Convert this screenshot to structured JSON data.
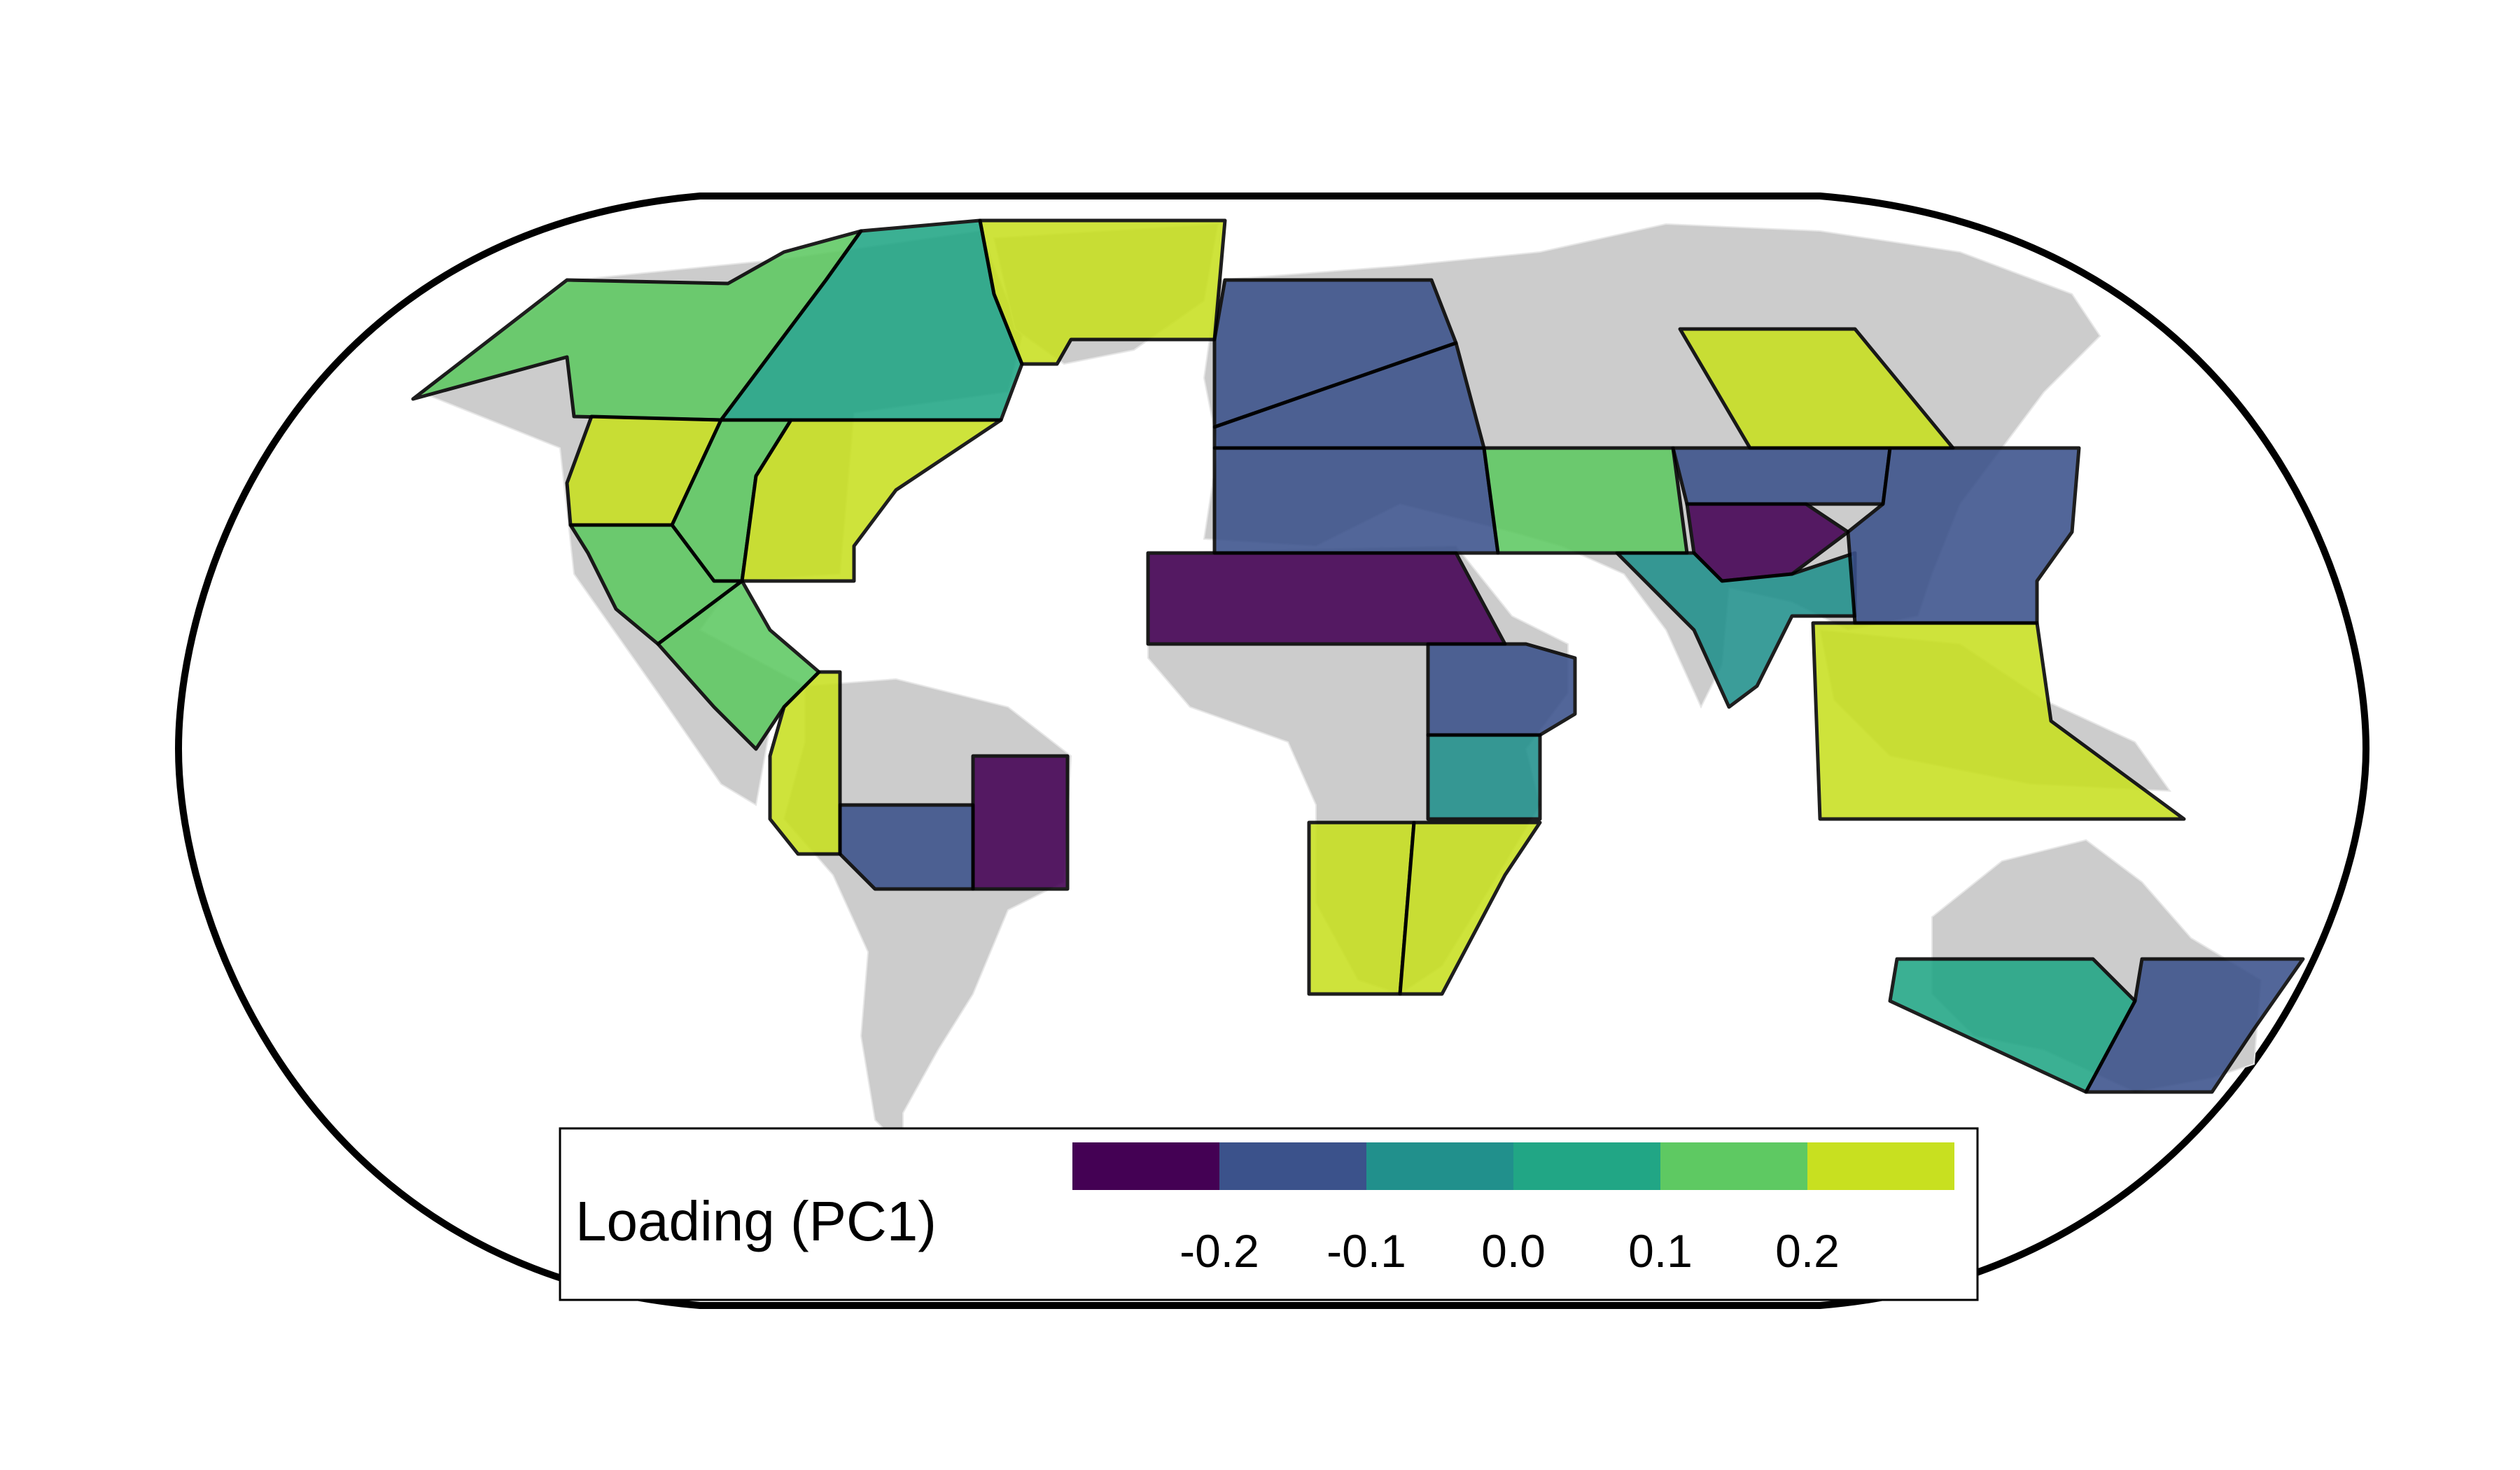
{
  "map": {
    "frame": "robinson-world-outline",
    "land_color": "#cccccc",
    "region_outline_color": "#000000",
    "regions": [
      {
        "id": "north-west-north-america",
        "value": 0.15
      },
      {
        "id": "north-east-north-america",
        "value": 0.05
      },
      {
        "id": "greenland-iceland",
        "value": 0.22
      },
      {
        "id": "western-north-america",
        "value": 0.22
      },
      {
        "id": "central-north-america",
        "value": 0.15
      },
      {
        "id": "eastern-north-america",
        "value": 0.22
      },
      {
        "id": "north-central-america",
        "value": 0.15
      },
      {
        "id": "south-central-america",
        "value": 0.15
      },
      {
        "id": "north-western-south-america",
        "value": 0.22
      },
      {
        "id": "south-american-monsoon",
        "value": -0.15
      },
      {
        "id": "north-eastern-south-america",
        "value": -0.25
      },
      {
        "id": "northern-europe",
        "value": -0.15
      },
      {
        "id": "west-central-europe",
        "value": -0.15
      },
      {
        "id": "mediterranean",
        "value": -0.15
      },
      {
        "id": "sahara",
        "value": -0.25
      },
      {
        "id": "north-eastern-africa",
        "value": -0.15
      },
      {
        "id": "south-eastern-africa",
        "value": -0.05
      },
      {
        "id": "western-southern-africa",
        "value": 0.22
      },
      {
        "id": "eastern-southern-africa",
        "value": 0.22
      },
      {
        "id": "west-central-asia",
        "value": 0.15
      },
      {
        "id": "east-central-asia",
        "value": -0.15
      },
      {
        "id": "tibetan-plateau",
        "value": -0.25
      },
      {
        "id": "south-asia",
        "value": -0.05
      },
      {
        "id": "east-asia",
        "value": -0.15
      },
      {
        "id": "east-siberia",
        "value": 0.22
      },
      {
        "id": "south-east-asia",
        "value": 0.22
      },
      {
        "id": "south-australia",
        "value": 0.05
      },
      {
        "id": "new-zealand",
        "value": -0.15
      }
    ]
  },
  "legend": {
    "title": "Loading (PC1)",
    "colors": [
      "#440154",
      "#3b528b",
      "#21908c",
      "#21a685",
      "#5ec962",
      "#c8e020"
    ],
    "ticks": [
      "-0.2",
      "-0.1",
      "0.0",
      "0.1",
      "0.2"
    ],
    "breaks": [
      -0.3,
      -0.2,
      -0.1,
      0.0,
      0.1,
      0.2,
      0.3
    ]
  }
}
